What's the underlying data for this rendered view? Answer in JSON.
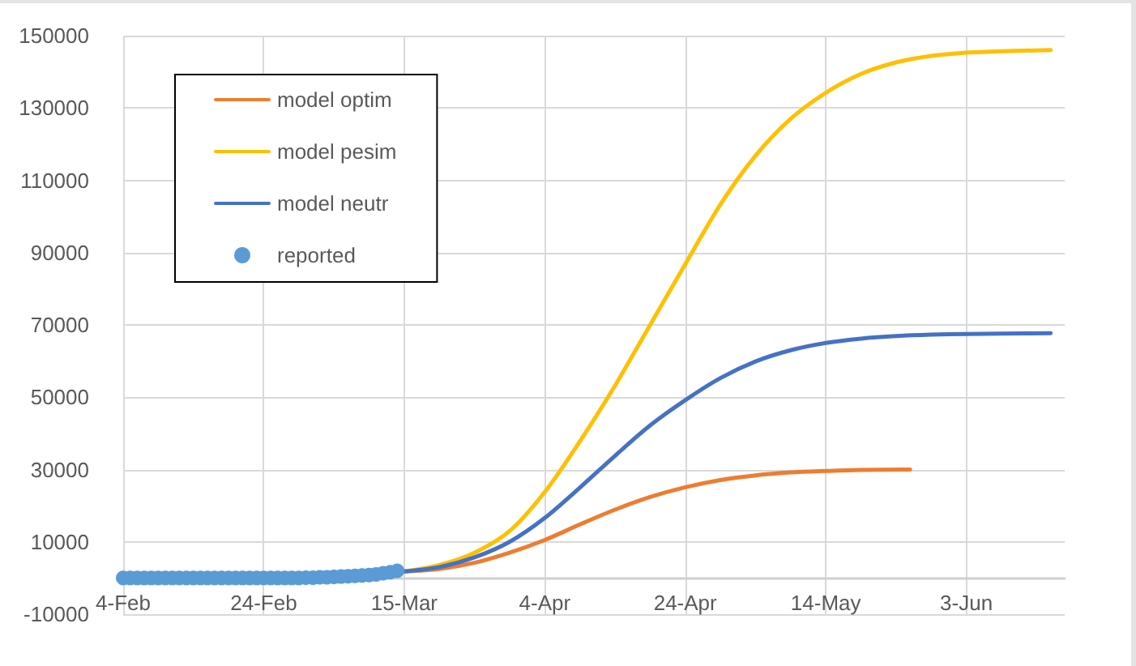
{
  "chart_data": {
    "type": "line",
    "legend": "top left",
    "grid": true,
    "xlim": [
      "--02-04",
      "--06-17"
    ],
    "xticks": [
      {
        "value": "--02-04",
        "label": "4-Feb"
      },
      {
        "value": "--02-24",
        "label": "24-Feb"
      },
      {
        "value": "--03-15",
        "label": "15-Mar"
      },
      {
        "value": "--04-04",
        "label": "4-Apr"
      },
      {
        "value": "--04-24",
        "label": "24-Apr"
      },
      {
        "value": "--05-14",
        "label": "14-May"
      },
      {
        "value": "--06-03",
        "label": "3-Jun"
      }
    ],
    "ylim": [
      -10000,
      150000
    ],
    "yticks": [
      -10000,
      10000,
      30000,
      50000,
      70000,
      90000,
      110000,
      130000,
      150000
    ],
    "series": [
      {
        "name": "model optim",
        "color": "#ed7d31",
        "marker": "none",
        "x": [
          "--03-15",
          "--03-20",
          "--03-25",
          "--03-30",
          "--04-04",
          "--04-09",
          "--04-14",
          "--04-19",
          "--04-24",
          "--04-29",
          "--05-04",
          "--05-09",
          "--05-14",
          "--05-19",
          "--05-26"
        ],
        "values": [
          1800,
          2500,
          4200,
          7000,
          10500,
          14800,
          18900,
          22400,
          25100,
          27100,
          28400,
          29200,
          29600,
          29900,
          30000
        ]
      },
      {
        "name": "model pesim",
        "color": "#ffc000",
        "marker": "none",
        "x": [
          "--03-15",
          "--03-20",
          "--03-25",
          "--03-30",
          "--04-04",
          "--04-09",
          "--04-14",
          "--04-19",
          "--04-24",
          "--04-29",
          "--05-04",
          "--05-09",
          "--05-14",
          "--05-19",
          "--05-24",
          "--05-29",
          "--06-03",
          "--06-08",
          "--06-15"
        ],
        "values": [
          1800,
          3600,
          7000,
          13000,
          23800,
          37800,
          53200,
          70000,
          86800,
          103300,
          116800,
          127000,
          134200,
          139400,
          142600,
          144400,
          145300,
          145700,
          146000
        ]
      },
      {
        "name": "model neutr",
        "color": "#4472c4",
        "marker": "none",
        "x": [
          "--03-15",
          "--03-20",
          "--03-25",
          "--03-30",
          "--04-04",
          "--04-09",
          "--04-14",
          "--04-19",
          "--04-24",
          "--04-29",
          "--05-04",
          "--05-09",
          "--05-14",
          "--05-19",
          "--05-24",
          "--05-29",
          "--06-03",
          "--06-08",
          "--06-15"
        ],
        "values": [
          1800,
          3000,
          5700,
          10000,
          16600,
          25000,
          33800,
          42200,
          49200,
          55300,
          59900,
          63000,
          65000,
          66200,
          66900,
          67300,
          67500,
          67600,
          67700
        ]
      },
      {
        "name": "reported",
        "type": "scatter",
        "color": "#5b9bd5",
        "marker": "circle",
        "x": [
          "--02-04",
          "--02-05",
          "--02-06",
          "--02-07",
          "--02-08",
          "--02-09",
          "--02-10",
          "--02-11",
          "--02-12",
          "--02-13",
          "--02-14",
          "--02-15",
          "--02-16",
          "--02-17",
          "--02-18",
          "--02-19",
          "--02-20",
          "--02-21",
          "--02-22",
          "--02-23",
          "--02-24",
          "--02-25",
          "--02-26",
          "--02-27",
          "--02-28",
          "--02-29",
          "--03-01",
          "--03-02",
          "--03-03",
          "--03-04",
          "--03-05",
          "--03-06",
          "--03-07",
          "--03-08",
          "--03-09",
          "--03-10",
          "--03-11",
          "--03-12",
          "--03-13",
          "--03-14"
        ],
        "values": [
          0,
          0,
          0,
          0,
          0,
          0,
          0,
          0,
          0,
          0,
          0,
          0,
          0,
          0,
          0,
          0,
          0,
          0,
          0,
          0,
          0,
          0,
          0,
          0,
          0,
          0,
          100,
          100,
          200,
          200,
          300,
          400,
          500,
          600,
          700,
          800,
          1000,
          1300,
          1600,
          2000
        ]
      }
    ]
  }
}
